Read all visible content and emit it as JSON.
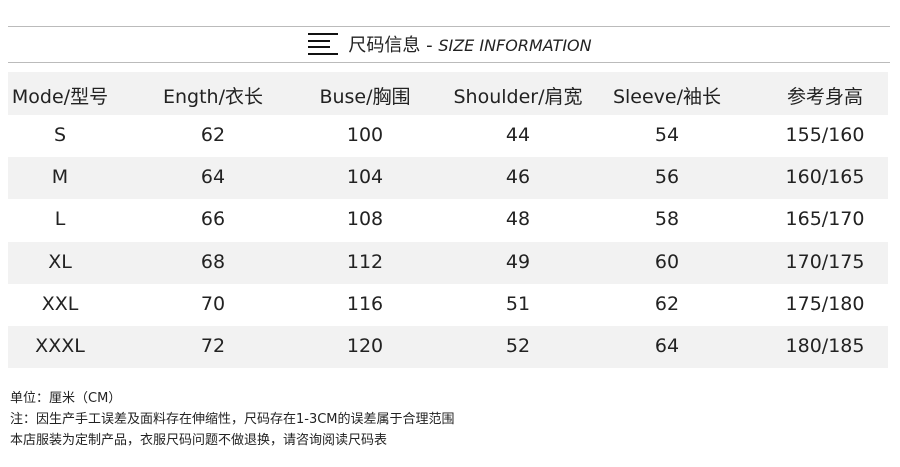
{
  "title": {
    "cn": "尺码信息",
    "sep": " - ",
    "en": "SIZE INFORMATION"
  },
  "headers": [
    "Mode/型号",
    "Ength/衣长",
    "Buse/胸围",
    "Shoulder/肩宽",
    "Sleeve/袖长",
    "参考身高"
  ],
  "rows": [
    [
      "S",
      "62",
      "100",
      "44",
      "54",
      "155/160"
    ],
    [
      "M",
      "64",
      "104",
      "46",
      "56",
      "160/165"
    ],
    [
      "L",
      "66",
      "108",
      "48",
      "58",
      "165/170"
    ],
    [
      "XL",
      "68",
      "112",
      "49",
      "60",
      "170/175"
    ],
    [
      "XXL",
      "70",
      "116",
      "51",
      "62",
      "175/180"
    ],
    [
      "XXXL",
      "72",
      "120",
      "52",
      "64",
      "180/185"
    ]
  ],
  "notes": [
    "单位：厘米（CM）",
    "注：因生产手工误差及面料存在伸缩性，尺码存在1-3CM的误差属于合理范围",
    "本店服装为定制产品，衣服尺码问题不做退换，请咨询阅读尺码表"
  ]
}
